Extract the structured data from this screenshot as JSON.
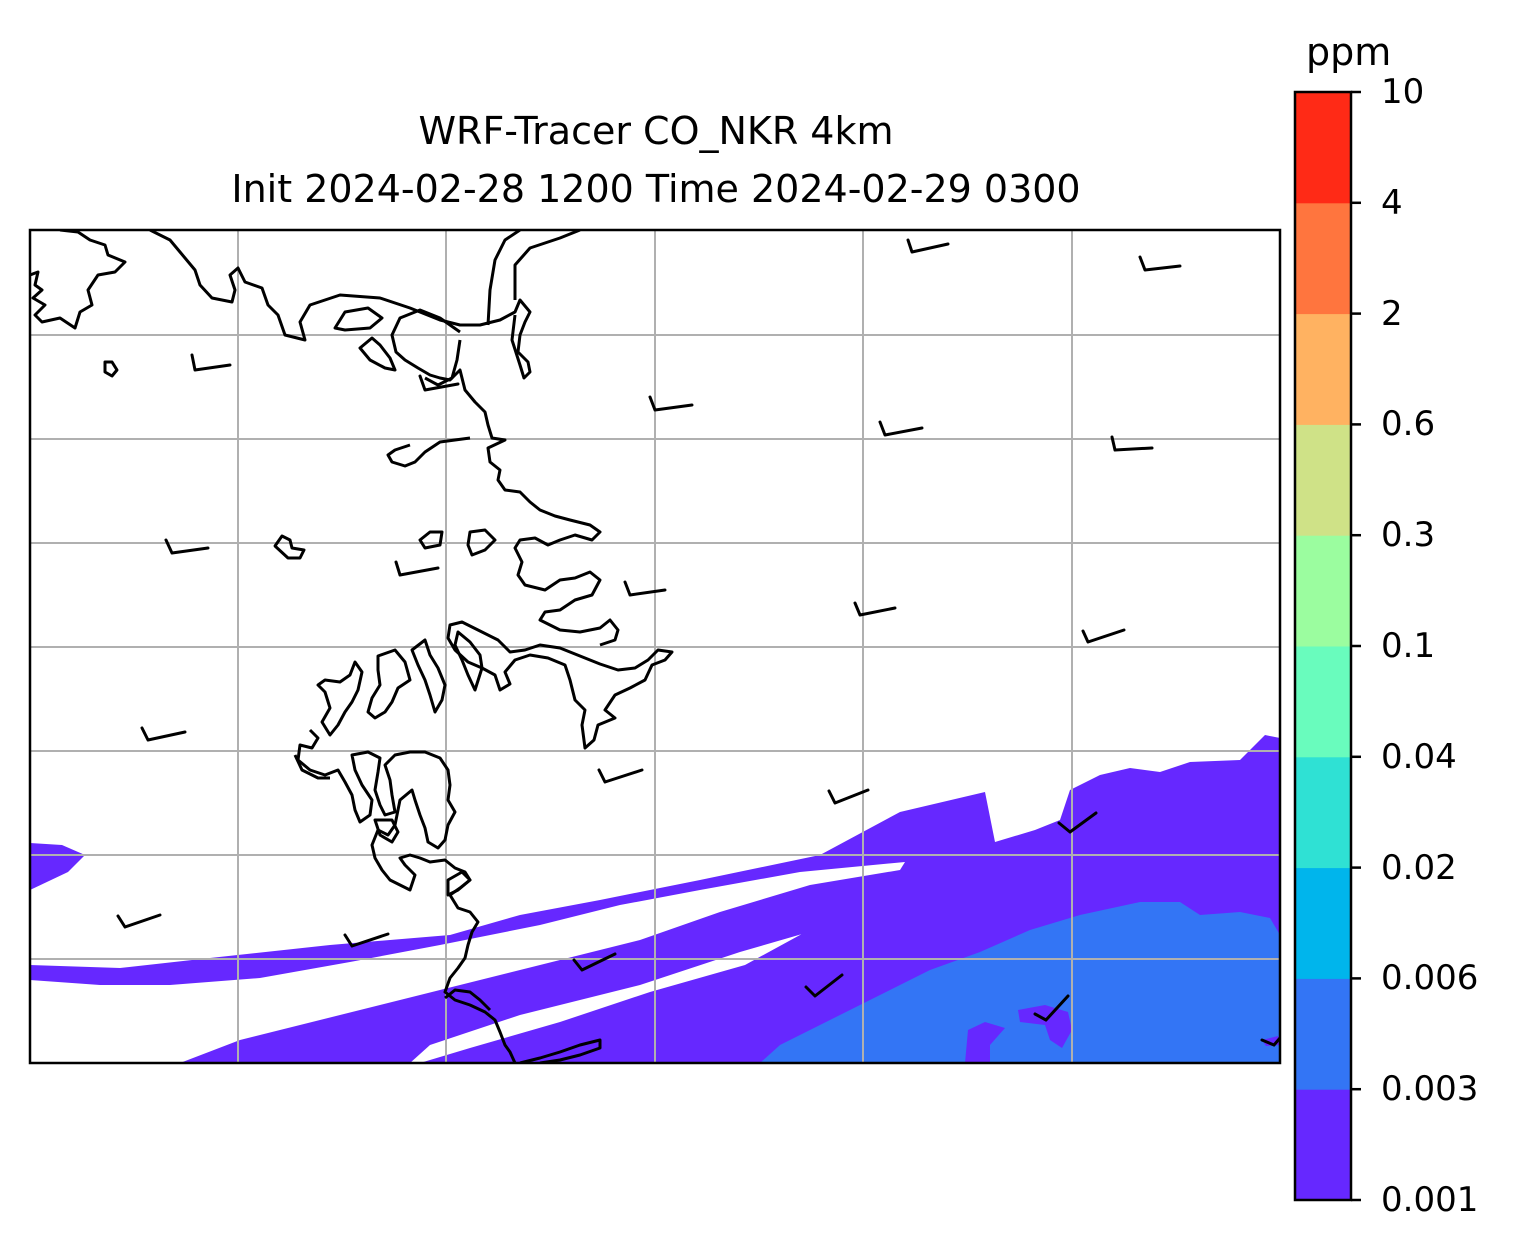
{
  "title": {
    "line1": "WRF-Tracer CO_NKR 4km",
    "line2": "Init 2024-02-28 1200 Time 2024-02-29 0300"
  },
  "colorbar": {
    "units": "ppm",
    "ticks": [
      "0.001",
      "0.003",
      "0.006",
      "0.02",
      "0.04",
      "0.1",
      "0.3",
      "0.6",
      "2",
      "4",
      "10"
    ],
    "colors": [
      "#6628ff",
      "#3375f5",
      "#00b5ec",
      "#2fe1d4",
      "#69fcbd",
      "#9bfd9f",
      "#cfe287",
      "#ffb261",
      "#ff753e",
      "#ff2a16"
    ]
  },
  "map": {
    "gridlines": true,
    "coastline_color": "#000000",
    "gridline_color": "#b0b0b0",
    "background": "#ffffff"
  }
}
